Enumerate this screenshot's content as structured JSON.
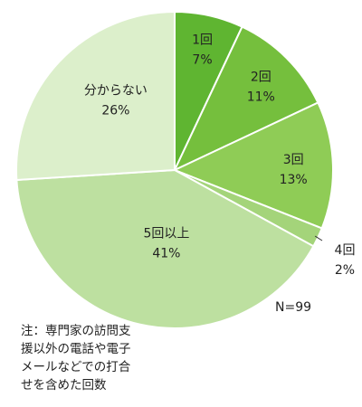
{
  "chart_data": {
    "type": "pie",
    "start_angle_deg": 0,
    "direction": "clockwise",
    "slices": [
      {
        "name": "1回",
        "value": 7,
        "label": "7%",
        "color": "#5fb531",
        "label_color": "#ffffff"
      },
      {
        "name": "2回",
        "value": 11,
        "label": "11%",
        "color": "#75bf3d",
        "label_color": "#ffffff"
      },
      {
        "name": "3回",
        "value": 13,
        "label": "13%",
        "color": "#8fcc56",
        "label_color": "#222222"
      },
      {
        "name": "4回",
        "value": 2,
        "label": "2%",
        "color": "#a4d47a",
        "label_color": "#222222"
      },
      {
        "name": "5回以上",
        "value": 41,
        "label": "41%",
        "color": "#bde0a0",
        "label_color": "#222222"
      },
      {
        "name": "分からない",
        "value": 26,
        "label": "26%",
        "color": "#dcefcb",
        "label_color": "#222222"
      }
    ],
    "sample_size": "N=99",
    "note": "注：専門家の訪問支\n援以外の電話や電子\nメールなどでの打合\nせを含めた回数"
  }
}
